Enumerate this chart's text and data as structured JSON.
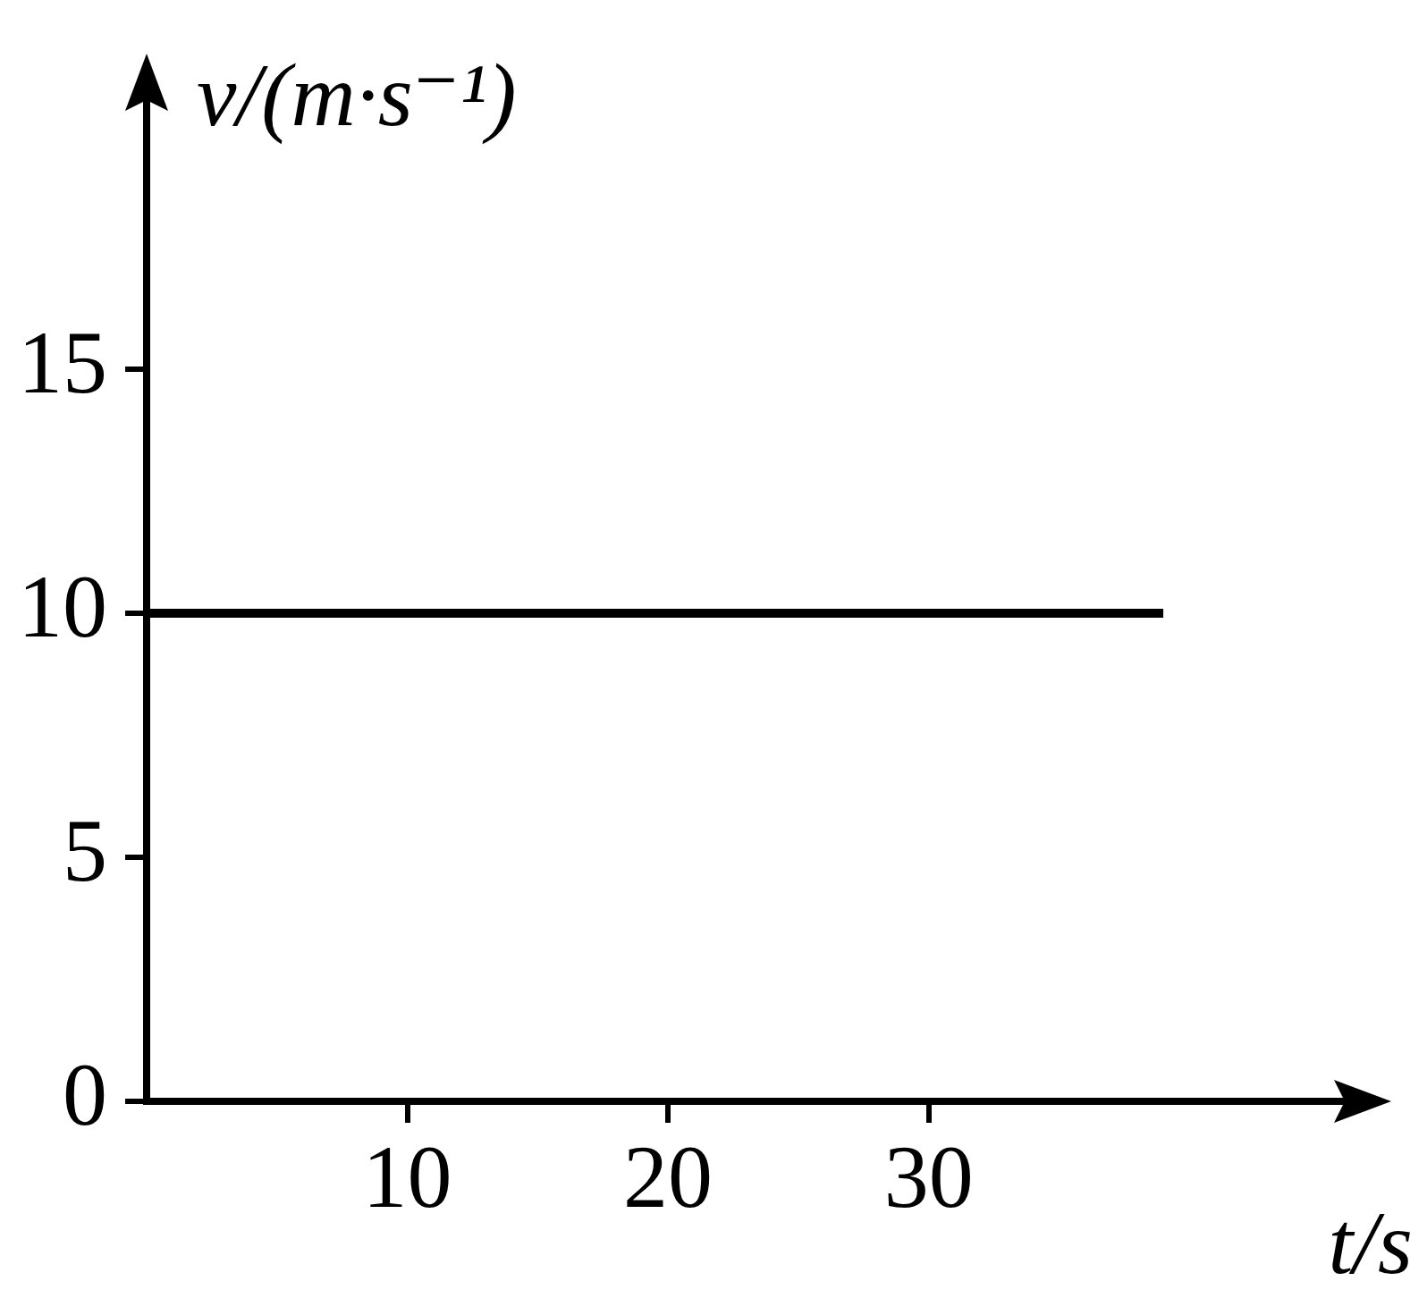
{
  "chart_data": {
    "type": "line",
    "xlabel": "t/s",
    "ylabel": "v/(m·s⁻¹)",
    "x": [
      0,
      39
    ],
    "series": [
      {
        "color": "#000000",
        "values": [
          10,
          10
        ]
      }
    ],
    "xlim": [
      0,
      45
    ],
    "xticks": [
      10,
      20,
      30
    ],
    "ylim": [
      0,
      20
    ],
    "yticks": [
      0,
      5,
      10,
      15
    ],
    "grid": false,
    "legend": false,
    "marker": "none",
    "line_style": "solid"
  }
}
